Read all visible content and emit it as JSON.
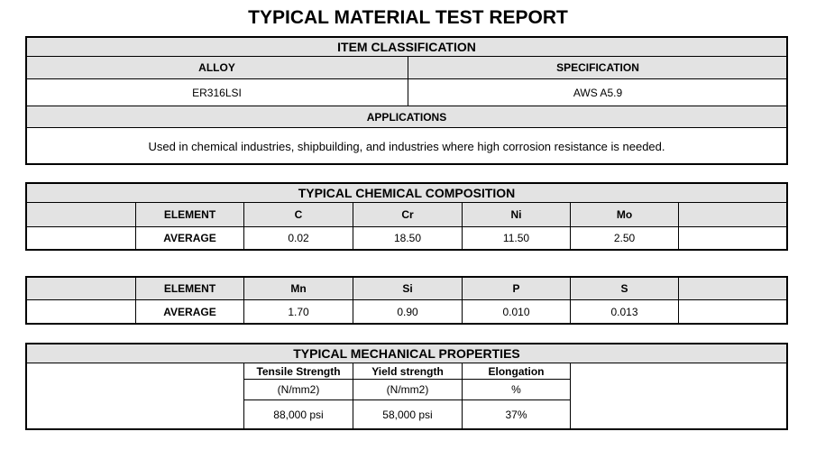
{
  "title": "TYPICAL MATERIAL TEST REPORT",
  "classification": {
    "heading": "ITEM CLASSIFICATION",
    "alloy_label": "ALLOY",
    "spec_label": "SPECIFICATION",
    "alloy": "ER316LSI",
    "spec": "AWS A5.9",
    "applications_label": "APPLICATIONS",
    "applications": "Used in chemical industries, shipbuilding, and industries where high corrosion resistance is needed."
  },
  "chemical": {
    "heading": "TYPICAL CHEMICAL COMPOSITION",
    "element_label": "ELEMENT",
    "average_label": "AVERAGE",
    "row1": {
      "elements": [
        "C",
        "Cr",
        "Ni",
        "Mo"
      ],
      "values": [
        "0.02",
        "18.50",
        "11.50",
        "2.50"
      ]
    },
    "row2": {
      "elements": [
        "Mn",
        "Si",
        "P",
        "S"
      ],
      "values": [
        "1.70",
        "0.90",
        "0.010",
        "0.013"
      ]
    }
  },
  "mechanical": {
    "heading": "TYPICAL MECHANICAL PROPERTIES",
    "headers": [
      "Tensile Strength",
      "Yield strength",
      "Elongation"
    ],
    "units": [
      "(N/mm2)",
      "(N/mm2)",
      "%"
    ],
    "values": [
      "88,000 psi",
      "58,000 psi",
      "37%"
    ]
  }
}
